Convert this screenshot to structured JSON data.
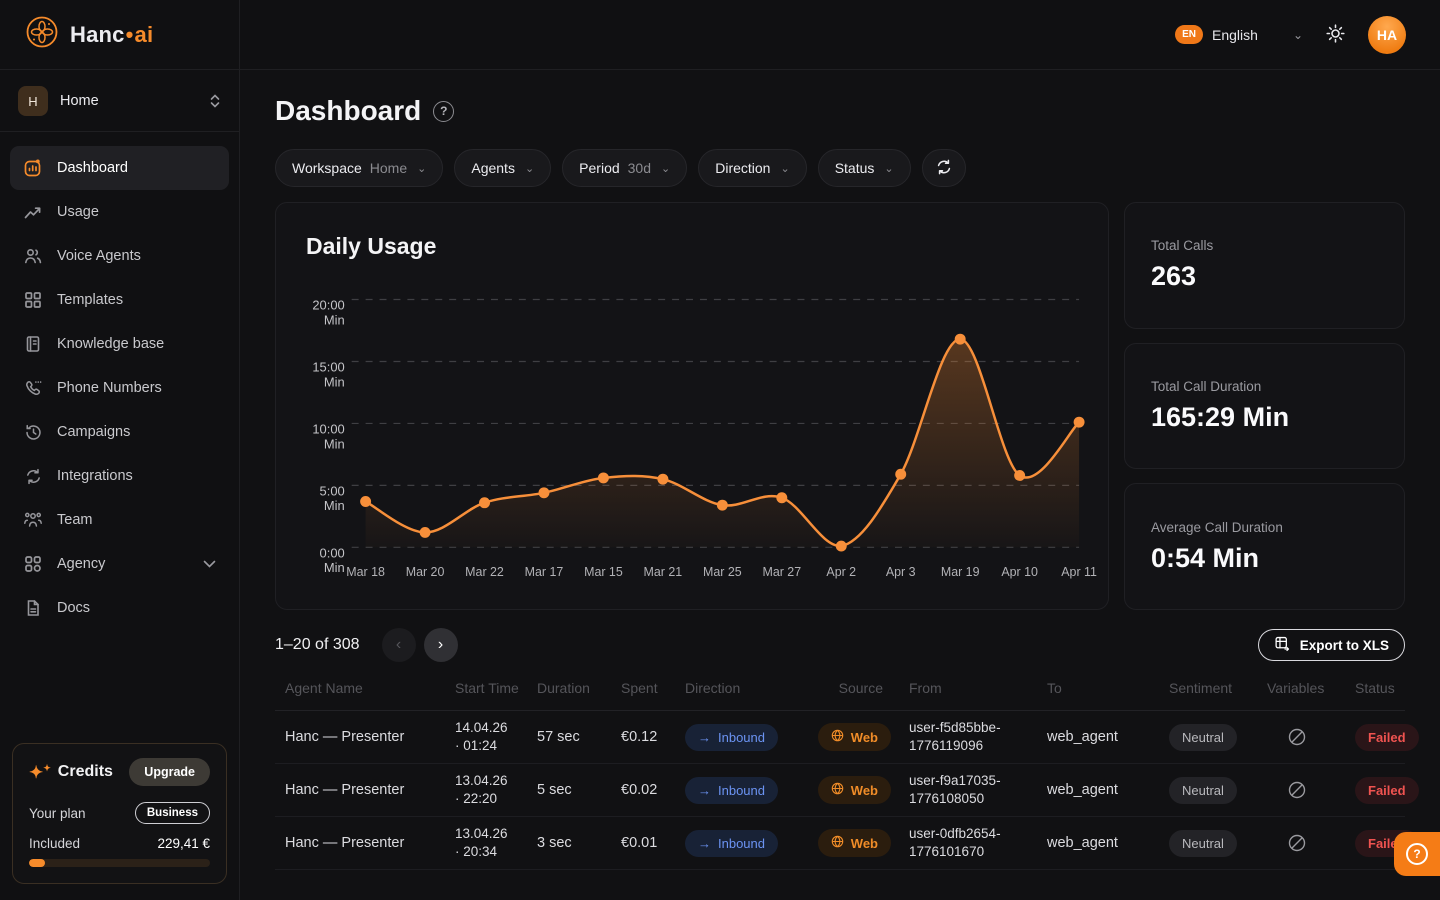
{
  "brand": {
    "name": "Hanc",
    "dot": "•",
    "suffix": "ai"
  },
  "topbar": {
    "language_code": "EN",
    "language": "English",
    "avatar_initials": "HA"
  },
  "workspace_selector": {
    "initial": "H",
    "label": "Home"
  },
  "sidebar": {
    "items": [
      {
        "label": "Dashboard"
      },
      {
        "label": "Usage"
      },
      {
        "label": "Voice Agents"
      },
      {
        "label": "Templates"
      },
      {
        "label": "Knowledge base"
      },
      {
        "label": "Phone Numbers"
      },
      {
        "label": "Campaigns"
      },
      {
        "label": "Integrations"
      },
      {
        "label": "Team"
      },
      {
        "label": "Agency"
      },
      {
        "label": "Docs"
      }
    ]
  },
  "credits": {
    "title": "Credits",
    "upgrade_label": "Upgrade",
    "plan_label": "Your plan",
    "plan_value": "Business",
    "included_label": "Included",
    "included_value": "229,41 €",
    "progress_pct": 9
  },
  "page": {
    "title": "Dashboard"
  },
  "filters": {
    "workspace_label": "Workspace",
    "workspace_value": "Home",
    "agents_label": "Agents",
    "period_label": "Period",
    "period_value": "30d",
    "direction_label": "Direction",
    "status_label": "Status"
  },
  "chart_data": {
    "type": "area",
    "title": "Daily Usage",
    "x": [
      "Mar 18",
      "Mar 20",
      "Mar 22",
      "Mar 17",
      "Mar 15",
      "Mar 21",
      "Mar 25",
      "Mar 27",
      "Apr 2",
      "Apr 3",
      "Mar 19",
      "Apr 10",
      "Apr 11"
    ],
    "values_min": [
      3.7,
      1.2,
      3.6,
      4.4,
      5.6,
      5.5,
      3.4,
      4.0,
      0.1,
      5.9,
      16.8,
      5.8,
      10.1
    ],
    "y_ticks": [
      "20:00",
      "15:00",
      "10:00",
      "5:00",
      "0:00"
    ],
    "y_unit": "Min",
    "ylim": [
      0,
      20
    ],
    "grid": "dashed-horizontal",
    "legend": "none",
    "line_color": "#f78f3a",
    "point_color": "#f78f3a"
  },
  "stats": [
    {
      "label": "Total Calls",
      "value": "263"
    },
    {
      "label": "Total Call Duration",
      "value": "165:29 Min"
    },
    {
      "label": "Average Call Duration",
      "value": "0:54 Min"
    }
  ],
  "pagination": {
    "range_text": "1–20 of 308",
    "prev": "‹",
    "next": "›"
  },
  "export": {
    "label": "Export to XLS"
  },
  "table": {
    "columns": [
      "Agent Name",
      "Start Time",
      "Duration",
      "Spent",
      "Direction",
      "Source",
      "From",
      "To",
      "Sentiment",
      "Variables",
      "Status"
    ],
    "rows": [
      {
        "agent": "Hanc — Presenter",
        "start_date": "14.04.26",
        "start_time": "· 01:24",
        "duration": "57 sec",
        "spent": "€0.12",
        "direction": "Inbound",
        "source": "Web",
        "from_line1": "user-f5d85bbe-",
        "from_line2": "1776119096",
        "to": "web_agent",
        "sentiment": "Neutral",
        "status": "Failed"
      },
      {
        "agent": "Hanc — Presenter",
        "start_date": "13.04.26",
        "start_time": "· 22:20",
        "duration": "5 sec",
        "spent": "€0.02",
        "direction": "Inbound",
        "source": "Web",
        "from_line1": "user-f9a17035-",
        "from_line2": "1776108050",
        "to": "web_agent",
        "sentiment": "Neutral",
        "status": "Failed"
      },
      {
        "agent": "Hanc — Presenter",
        "start_date": "13.04.26",
        "start_time": "· 20:34",
        "duration": "3 sec",
        "spent": "€0.01",
        "direction": "Inbound",
        "source": "Web",
        "from_line1": "user-0dfb2654-",
        "from_line2": "1776101670",
        "to": "web_agent",
        "sentiment": "Neutral",
        "status": "Failed"
      }
    ]
  },
  "chat_button": {
    "glyph": "?"
  }
}
